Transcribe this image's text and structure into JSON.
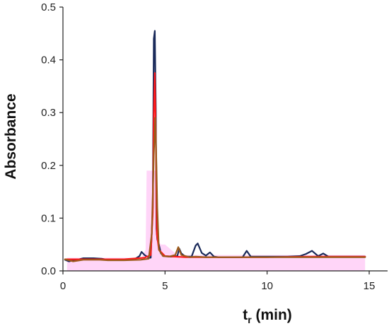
{
  "chart_data": {
    "type": "line",
    "title": "",
    "xlabel_main": "t",
    "xlabel_sub": "r",
    "xlabel_unit": " (min)",
    "ylabel": "Absorbance",
    "xlim": [
      0,
      15
    ],
    "ylim": [
      0,
      0.5
    ],
    "xticks": [
      0,
      5,
      10,
      15
    ],
    "xtick_labels": [
      "0",
      "5",
      "10",
      "15"
    ],
    "yticks": [
      0.0,
      0.1,
      0.2,
      0.3,
      0.4,
      0.5
    ],
    "ytick_labels": [
      "0.0",
      "0.1",
      "0.2",
      "0.3",
      "0.4",
      "0.5"
    ],
    "grid": false,
    "legend": "none",
    "series": [
      {
        "color": "#ffb3f2",
        "fill": true,
        "x": [
          0.2,
          3.85,
          4.05,
          4.1,
          4.2,
          4.3,
          4.4,
          4.5,
          4.6,
          4.65,
          4.7,
          4.8,
          5.0,
          5.3,
          5.6,
          6.0,
          8.0,
          10.0,
          12.0,
          14.8
        ],
        "y": [
          0.025,
          0.025,
          0.04,
          0.19,
          0.19,
          0.19,
          0.19,
          0.19,
          0.19,
          0.1,
          0.055,
          0.05,
          0.05,
          0.04,
          0.03,
          0.03,
          0.03,
          0.03,
          0.03,
          0.03
        ]
      },
      {
        "color": "#1a2a5a",
        "fill": false,
        "x": [
          0.1,
          0.3,
          0.5,
          0.8,
          1.0,
          1.5,
          1.9,
          2.2,
          2.6,
          3.0,
          3.5,
          3.75,
          3.85,
          4.0,
          4.2,
          4.3,
          4.4,
          4.45,
          4.5,
          4.55,
          4.58,
          4.62,
          4.7,
          4.8,
          5.0,
          5.3,
          5.6,
          5.7,
          5.8,
          6.0,
          6.3,
          6.5,
          6.6,
          6.8,
          7.0,
          7.2,
          7.4,
          7.6,
          7.8,
          8.2,
          8.8,
          9.0,
          9.2,
          10.0,
          11.0,
          11.6,
          11.9,
          12.2,
          12.5,
          12.75,
          13.0,
          14.0,
          14.8
        ],
        "y": [
          0.021,
          0.018,
          0.02,
          0.022,
          0.024,
          0.024,
          0.023,
          0.021,
          0.021,
          0.021,
          0.022,
          0.028,
          0.036,
          0.03,
          0.025,
          0.025,
          0.12,
          0.44,
          0.455,
          0.3,
          0.08,
          0.06,
          0.05,
          0.033,
          0.028,
          0.027,
          0.028,
          0.042,
          0.033,
          0.027,
          0.027,
          0.048,
          0.052,
          0.034,
          0.029,
          0.035,
          0.027,
          0.026,
          0.026,
          0.026,
          0.026,
          0.038,
          0.027,
          0.027,
          0.027,
          0.028,
          0.032,
          0.038,
          0.028,
          0.033,
          0.027,
          0.027,
          0.027
        ]
      },
      {
        "color": "#ff1a1a",
        "fill": false,
        "x": [
          0.1,
          1.0,
          2.0,
          3.0,
          4.0,
          4.3,
          4.4,
          4.45,
          4.5,
          4.55,
          4.6,
          4.7,
          5.0,
          6.0,
          8.0,
          10.0,
          12.0,
          14.8
        ],
        "y": [
          0.022,
          0.022,
          0.022,
          0.022,
          0.025,
          0.03,
          0.11,
          0.3,
          0.375,
          0.25,
          0.07,
          0.04,
          0.028,
          0.026,
          0.026,
          0.026,
          0.027,
          0.027
        ]
      },
      {
        "color": "#9c5a1a",
        "fill": false,
        "x": [
          0.1,
          0.5,
          1.0,
          1.8,
          2.2,
          3.0,
          3.8,
          4.2,
          4.35,
          4.45,
          4.52,
          4.58,
          4.62,
          4.7,
          4.9,
          5.2,
          5.5,
          5.65,
          5.8,
          6.2,
          6.5,
          7.0,
          8.0,
          9.0,
          10.0,
          11.0,
          12.0,
          13.0,
          14.0,
          14.8
        ],
        "y": [
          0.022,
          0.018,
          0.021,
          0.021,
          0.02,
          0.02,
          0.021,
          0.023,
          0.07,
          0.22,
          0.29,
          0.2,
          0.12,
          0.04,
          0.028,
          0.027,
          0.03,
          0.045,
          0.03,
          0.026,
          0.027,
          0.026,
          0.026,
          0.026,
          0.026,
          0.026,
          0.026,
          0.026,
          0.026,
          0.026
        ]
      }
    ]
  }
}
